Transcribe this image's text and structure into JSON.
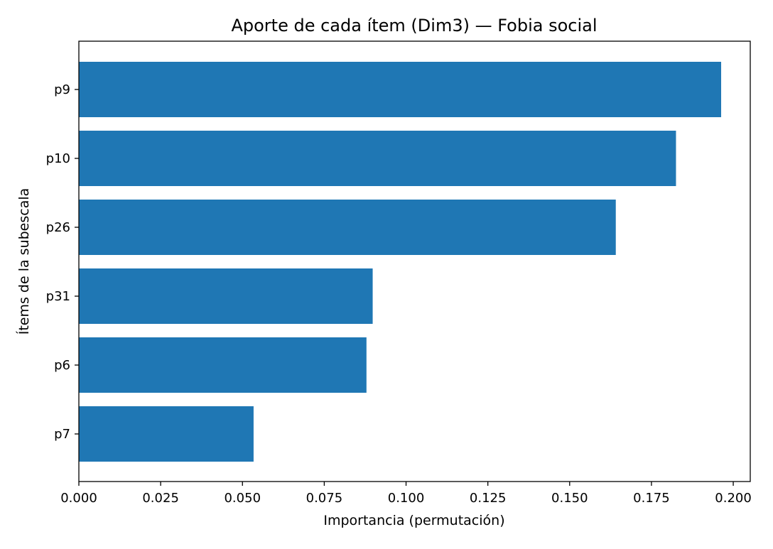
{
  "chart_data": {
    "type": "bar",
    "orientation": "horizontal",
    "title": "Aporte de cada ítem (Dim3) — Fobia social",
    "xlabel": "Importancia (permutación)",
    "ylabel": "Ítems de la subescala",
    "categories": [
      "p9",
      "p10",
      "p26",
      "p31",
      "p6",
      "p7"
    ],
    "values": [
      0.1963,
      0.1825,
      0.1641,
      0.0898,
      0.0879,
      0.0534
    ],
    "xlim": [
      0.0,
      0.2052
    ],
    "xticks": [
      "0.000",
      "0.025",
      "0.050",
      "0.075",
      "0.100",
      "0.125",
      "0.150",
      "0.175",
      "0.200"
    ],
    "bar_color": "#1f77b4",
    "grid": false,
    "legend": false
  }
}
